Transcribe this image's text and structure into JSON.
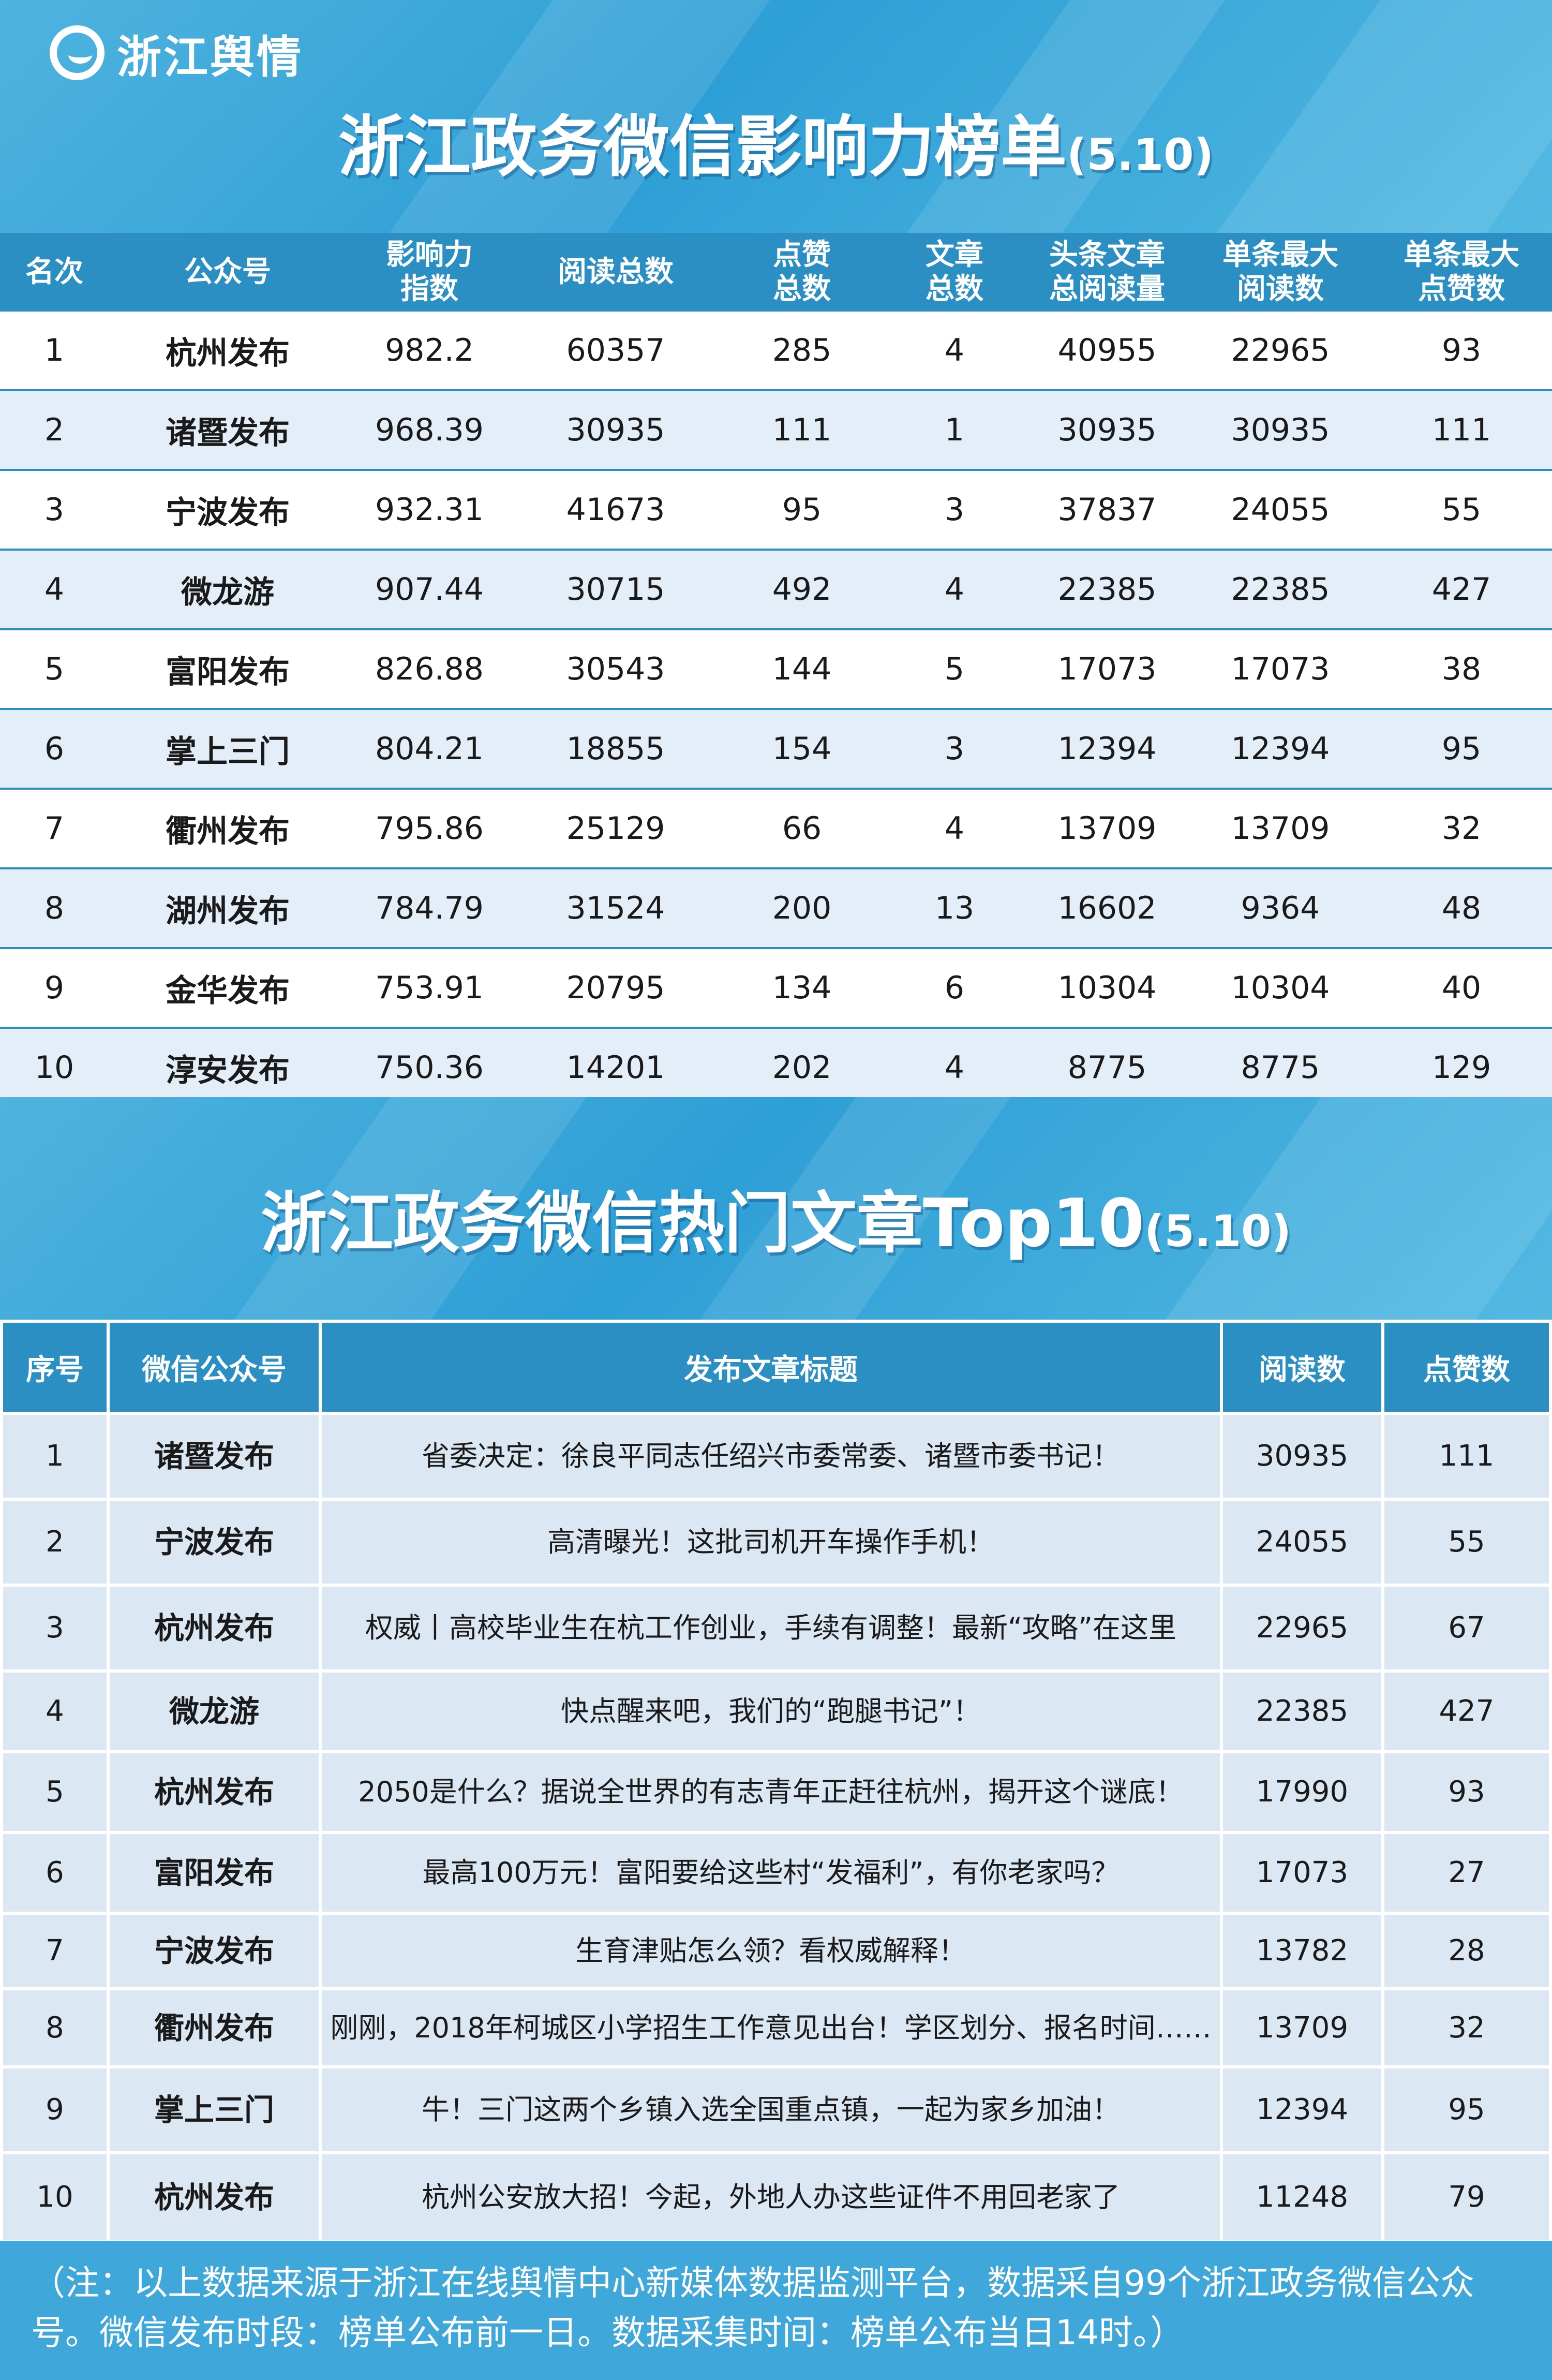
{
  "brand": {
    "logo_text": "浙江舆情"
  },
  "ranking": {
    "title": "浙江政务微信影响力榜单",
    "date": "(5.10)",
    "headers": [
      [
        "名次"
      ],
      [
        "公众号"
      ],
      [
        "影响力",
        "指数"
      ],
      [
        "阅读总数"
      ],
      [
        "点赞",
        "总数"
      ],
      [
        "文章",
        "总数"
      ],
      [
        "头条文章",
        "总阅读量"
      ],
      [
        "单条最大",
        "阅读数"
      ],
      [
        "单条最大",
        "点赞数"
      ]
    ],
    "rows": [
      [
        "1",
        "杭州发布",
        "982.2",
        "60357",
        "285",
        "4",
        "40955",
        "22965",
        "93"
      ],
      [
        "2",
        "诸暨发布",
        "968.39",
        "30935",
        "111",
        "1",
        "30935",
        "30935",
        "111"
      ],
      [
        "3",
        "宁波发布",
        "932.31",
        "41673",
        "95",
        "3",
        "37837",
        "24055",
        "55"
      ],
      [
        "4",
        "微龙游",
        "907.44",
        "30715",
        "492",
        "4",
        "22385",
        "22385",
        "427"
      ],
      [
        "5",
        "富阳发布",
        "826.88",
        "30543",
        "144",
        "5",
        "17073",
        "17073",
        "38"
      ],
      [
        "6",
        "掌上三门",
        "804.21",
        "18855",
        "154",
        "3",
        "12394",
        "12394",
        "95"
      ],
      [
        "7",
        "衢州发布",
        "795.86",
        "25129",
        "66",
        "4",
        "13709",
        "13709",
        "32"
      ],
      [
        "8",
        "湖州发布",
        "784.79",
        "31524",
        "200",
        "13",
        "16602",
        "9364",
        "48"
      ],
      [
        "9",
        "金华发布",
        "753.91",
        "20795",
        "134",
        "6",
        "10304",
        "10304",
        "40"
      ],
      [
        "10",
        "淳安发布",
        "750.36",
        "14201",
        "202",
        "4",
        "8775",
        "8775",
        "129"
      ]
    ]
  },
  "top_articles": {
    "title": "浙江政务微信热门文章Top10",
    "date": "(5.10)",
    "headers": [
      "序号",
      "微信公众号",
      "发布文章标题",
      "阅读数",
      "点赞数"
    ],
    "rows": [
      [
        "1",
        "诸暨发布",
        "省委决定：徐良平同志任绍兴市委常委、诸暨市委书记！",
        "30935",
        "111"
      ],
      [
        "2",
        "宁波发布",
        "高清曝光！这批司机开车操作手机！",
        "24055",
        "55"
      ],
      [
        "3",
        "杭州发布",
        "权威丨高校毕业生在杭工作创业，手续有调整！最新“攻略”在这里",
        "22965",
        "67"
      ],
      [
        "4",
        "微龙游",
        "快点醒来吧，我们的“跑腿书记”！",
        "22385",
        "427"
      ],
      [
        "5",
        "杭州发布",
        "2050是什么？据说全世界的有志青年正赶往杭州，揭开这个谜底！",
        "17990",
        "93"
      ],
      [
        "6",
        "富阳发布",
        "最高100万元！富阳要给这些村“发福利”，有你老家吗？",
        "17073",
        "27"
      ],
      [
        "7",
        "宁波发布",
        "生育津贴怎么领？看权威解释！",
        "13782",
        "28"
      ],
      [
        "8",
        "衢州发布",
        "刚刚，2018年柯城区小学招生工作意见出台！学区划分、报名时间……",
        "13709",
        "32"
      ],
      [
        "9",
        "掌上三门",
        "牛！三门这两个乡镇入选全国重点镇，一起为家乡加油！",
        "12394",
        "95"
      ],
      [
        "10",
        "杭州发布",
        "杭州公安放大招！今起，外地人办这些证件不用回老家了",
        "11248",
        "79"
      ]
    ]
  },
  "footer": {
    "note": "（注：以上数据来源于浙江在线舆情中心新媒体数据监测平台，数据采自99个浙江政务微信公众号。微信发布时段：榜单公布前一日。数据采集时间：榜单公布当日14时。）"
  },
  "colors": {
    "banner": "#2e9fd6",
    "header_bg": "#2b8fc4",
    "row_alt": "#e4eef8",
    "cell_bg": "#dbe7f3"
  }
}
